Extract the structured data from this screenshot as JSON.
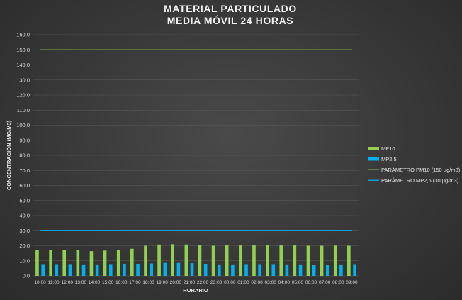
{
  "chart_data": {
    "type": "bar",
    "title": [
      "MATERIAL PARTICULADO",
      "MEDIA MÓVIL 24 HORAS"
    ],
    "xlabel": "HORARIO",
    "ylabel": "CONCENTRACIÓN (MG/M3)",
    "ylim": [
      0,
      160
    ],
    "ytick_step": 10,
    "ytick_labels": [
      "0,0",
      "10,0",
      "20,0",
      "30,0",
      "40,0",
      "50,0",
      "60,0",
      "70,0",
      "80,0",
      "90,0",
      "100,0",
      "110,0",
      "120,0",
      "130,0",
      "140,0",
      "150,0",
      "160,0"
    ],
    "grid": true,
    "legend_placement": "right",
    "categories": [
      "10:00",
      "11:00",
      "12:00",
      "13:00",
      "14:00",
      "15:00",
      "16:00",
      "17:00",
      "18:00",
      "19:00",
      "20:00",
      "21:00",
      "22:00",
      "23:00",
      "00:00",
      "01:00",
      "02:00",
      "03:00",
      "04:00",
      "05:00",
      "06:00",
      "07:00",
      "08:00",
      "09:00"
    ],
    "series": [
      {
        "name": "MP10",
        "kind": "bar",
        "color": "#92d050",
        "values": [
          17.2,
          17.3,
          17.2,
          17.4,
          16.4,
          16.8,
          17.2,
          18.0,
          20.0,
          20.8,
          21.0,
          20.8,
          20.4,
          20.0,
          20.2,
          20.2,
          20.2,
          20.2,
          20.2,
          20.2,
          20.0,
          20.0,
          20.1,
          20.0
        ]
      },
      {
        "name": "MP2,5",
        "kind": "bar",
        "color": "#00b0f0",
        "values": [
          7.8,
          7.8,
          7.8,
          7.6,
          7.6,
          7.8,
          8.0,
          8.0,
          8.2,
          8.6,
          8.6,
          8.4,
          8.0,
          7.6,
          7.6,
          7.8,
          7.8,
          7.8,
          7.6,
          7.6,
          7.4,
          7.4,
          7.6,
          7.8
        ]
      },
      {
        "name": "PARÁMETRO PM10 (150 µg/m3)",
        "kind": "line",
        "color": "#92d050",
        "value": 150
      },
      {
        "name": "PARÁMETRO MP2,5 (30 µg/m3)",
        "kind": "line",
        "color": "#00b0f0",
        "value": 30
      }
    ]
  }
}
